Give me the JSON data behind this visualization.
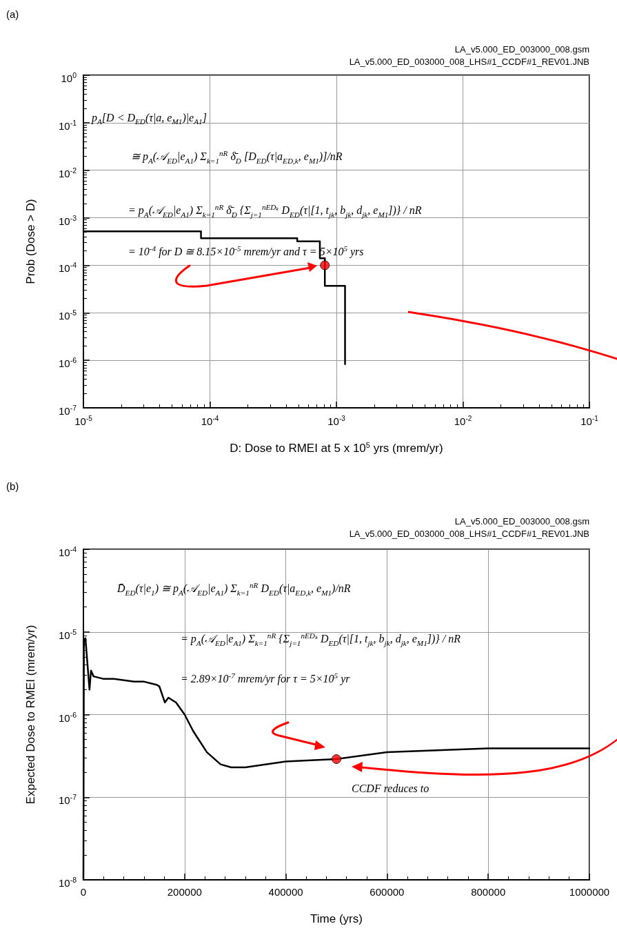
{
  "chart_data": [
    {
      "type": "step",
      "title": "(a)",
      "xlabel": "D: Dose to RMEI at 5 x 10$^{5}$ yrs (mrem/yr)",
      "ylabel": "Prob (Dose > D)",
      "log": "xy",
      "grid": true,
      "xlim": [
        1e-05,
        0.1
      ],
      "xticks": [
        {
          "value": 1e-05,
          "label": "10$^{-5}$"
        },
        {
          "value": 0.0001,
          "label": "10$^{-4}$"
        },
        {
          "value": 0.001,
          "label": "10$^{-3}$"
        },
        {
          "value": 0.01,
          "label": "10$^{-2}$"
        },
        {
          "value": 0.1,
          "label": "10$^{-1}$"
        }
      ],
      "ylim": [
        1e-07,
        1
      ],
      "yticks": [
        {
          "value": 1e-07,
          "label": "10$^{-7}$"
        },
        {
          "value": 1e-06,
          "label": "10$^{-6}$"
        },
        {
          "value": 1e-05,
          "label": "10$^{-5}$"
        },
        {
          "value": 0.0001,
          "label": "10$^{-4}$"
        },
        {
          "value": 0.001,
          "label": "10$^{-3}$"
        },
        {
          "value": 0.01,
          "label": "10$^{-2}$"
        },
        {
          "value": 0.1,
          "label": "10$^{-1}$"
        },
        {
          "value": 1,
          "label": "10$^{0}$"
        }
      ],
      "series": [
        {
          "color": "#000000",
          "marker": "none",
          "x": [
            1e-05,
            8.5e-05,
            0.00049,
            0.00074,
            0.00081,
            0.00117
          ],
          "values": [
            0.00052,
            0.00037,
            0.00032,
            0.00014,
            3.7e-05,
            8.3e-07
          ]
        },
        {
          "type": "scatter",
          "color": "#ff0000",
          "marker": "circle",
          "x": [
            0.00081
          ],
          "values": [
            0.0001
          ]
        }
      ],
      "annotations": [
        "LA_v5.000_ED_003000_008.gsm",
        "LA_v5.000_ED_003000_008_LHS#1_CCDF#1_REV01.JNB",
        "p$_{A}$[D < D$_{ED}$(τ|a, e$_{M1}$)|e$_{A1}$]",
        "≅ p$_{A}$(𝒜$_{ED}$|e$_{A1}$) Σ$_{k=1}$$^{nR}$ δ̄$_{D}$ [D$_{ED}$(τ|a$_{ED,k}$, e$_{M1}$)]/nR",
        "= p$_{A}$(𝒜$_{ED}$|e$_{A1}$) Σ$_{k=1}$$^{nR}$ δ̄$_{D}$ {Σ$_{j=1}$$^{nEDₖ}$ D$_{ED}$(τ|[1, t$_{jk}$, b$_{jk}$, d$_{jk}$, e$_{M1}$])} / nR",
        "= 10$^{-4}$ for D ≅ 8.15×10$^{-5}$ mrem/yr and τ = 5×10$^{5}$ yrs"
      ]
    },
    {
      "type": "line",
      "title": "(b)",
      "xlabel": "Time (yrs)",
      "ylabel": "Expected Dose to RMEI (mrem/yr)",
      "log": "y",
      "grid": true,
      "xlim": [
        0,
        1000000
      ],
      "xticks": [
        0,
        200000,
        400000,
        600000,
        800000,
        1000000
      ],
      "ylim": [
        1e-08,
        0.0001
      ],
      "yticks": [
        {
          "value": 1e-08,
          "label": "10$^{-8}$"
        },
        {
          "value": 1e-07,
          "label": "10$^{-7}$"
        },
        {
          "value": 1e-06,
          "label": "10$^{-6}$"
        },
        {
          "value": 1e-05,
          "label": "10$^{-5}$"
        },
        {
          "value": 0.0001,
          "label": "10$^{-4}$"
        }
      ],
      "series": [
        {
          "color": "#000000",
          "marker": "none",
          "x": [
            0,
            1000,
            4000,
            12000,
            15000,
            20000,
            40000,
            60000,
            80000,
            100000,
            120000,
            144000,
            150000,
            161000,
            168000,
            183000,
            200000,
            217000,
            244000,
            271000,
            292000,
            320000,
            400000,
            500000,
            600000,
            700000,
            800000,
            900000,
            1000000
          ],
          "values": [
            1e-08,
            8e-06,
            8.4e-06,
            2e-06,
            3.4e-06,
            2.9e-06,
            2.7e-06,
            2.7e-06,
            2.6e-06,
            2.5e-06,
            2.5e-06,
            2.3e-06,
            2.2e-06,
            1.4e-06,
            1.6e-06,
            1.4e-06,
            1e-06,
            6.3e-07,
            3.5e-07,
            2.5e-07,
            2.3e-07,
            2.3e-07,
            2.7e-07,
            2.89e-07,
            3.5e-07,
            3.7e-07,
            3.9e-07,
            3.9e-07,
            3.9e-07
          ]
        },
        {
          "type": "scatter",
          "color": "#ff0000",
          "marker": "circle",
          "x": [
            500000
          ],
          "values": [
            2.89e-07
          ]
        }
      ],
      "annotations": [
        "LA_v5.000_ED_003000_008.gsm",
        "LA_v5.000_ED_003000_008_LHS#1_CCDF#1_REV01.JNB",
        "D̄$_{ED}$(τ|e$_{1}$) ≅ p$_{A}$(𝒜$_{ED}$|e$_{A1}$) Σ$_{k=1}$$^{nR}$ D$_{ED}$(τ|a$_{ED,k}$, e$_{M1}$)/nR",
        "= p$_{A}$(𝒜$_{ED}$|e$_{A1}$) Σ$_{k=1}$$^{nR}$ {Σ$_{j=1}$$^{nEDₖ}$ D$_{ED}$(τ|[1, t$_{jk}$, b$_{jk}$, d$_{jk}$, e$_{M1}$])} / nR",
        "= 2.89×10$^{-7}$ mrem/yr for τ = 5×10$^{5}$ yr",
        "CCDF reduces to"
      ]
    }
  ]
}
